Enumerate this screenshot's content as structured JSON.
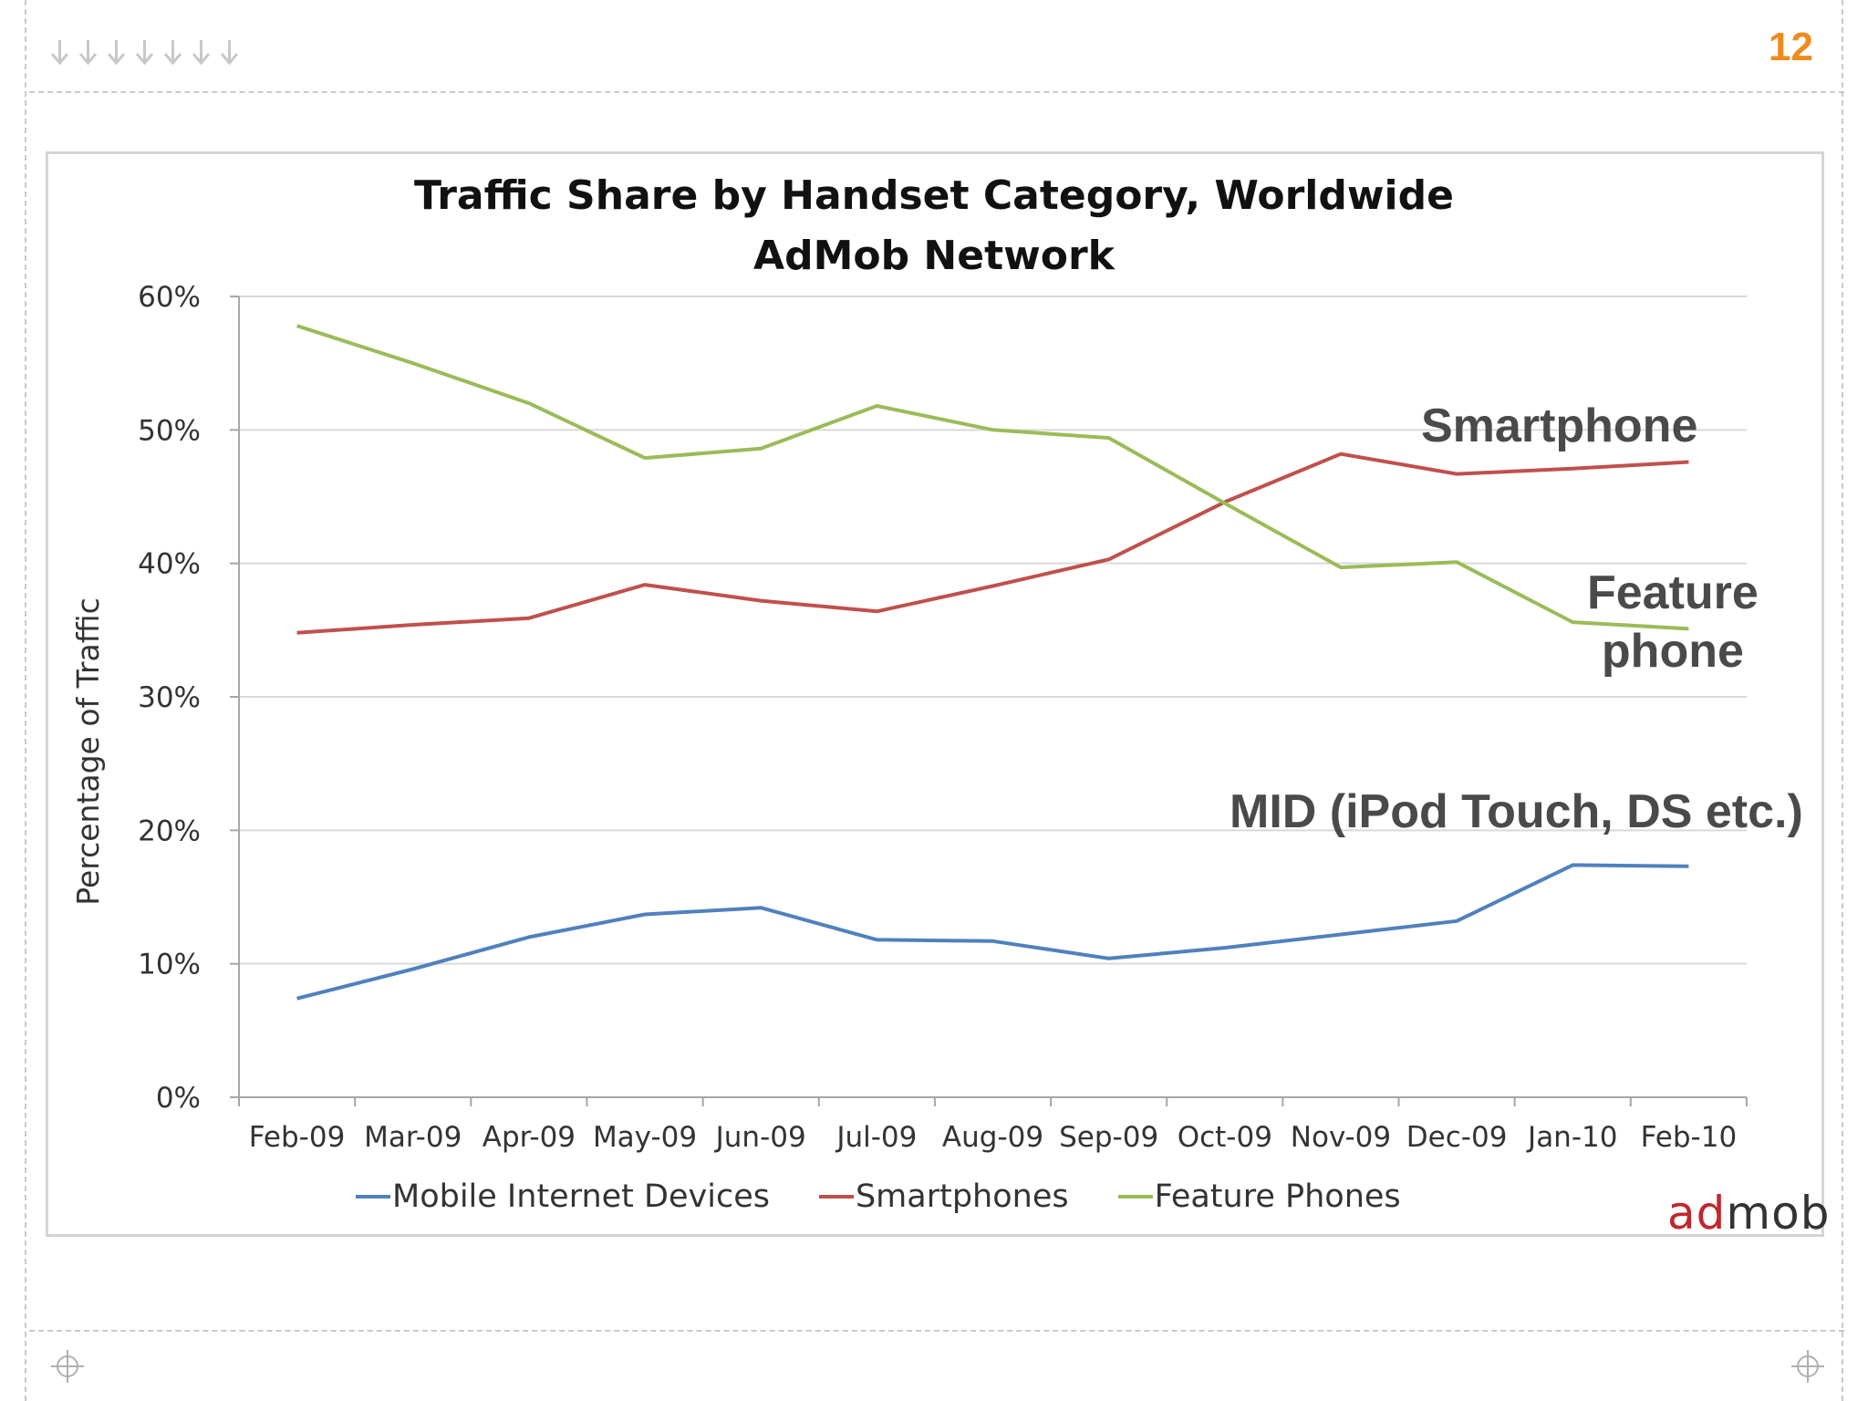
{
  "slide": {
    "page_number": "12",
    "nav_arrow_count": 7
  },
  "chart_data": {
    "type": "line",
    "title": "Traffic Share by Handset Category, Worldwide",
    "subtitle": "AdMob Network",
    "xlabel": "",
    "ylabel": "Percentage of Traffic",
    "ylim": [
      0,
      60
    ],
    "ytick_values": [
      0,
      10,
      20,
      30,
      40,
      50,
      60
    ],
    "ytick_labels": [
      "0%",
      "10%",
      "20%",
      "30%",
      "40%",
      "50%",
      "60%"
    ],
    "grid": true,
    "categories": [
      "Feb-09",
      "Mar-09",
      "Apr-09",
      "May-09",
      "Jun-09",
      "Jul-09",
      "Aug-09",
      "Sep-09",
      "Oct-09",
      "Nov-09",
      "Dec-09",
      "Jan-10",
      "Feb-10"
    ],
    "series": [
      {
        "name": "Mobile Internet Devices",
        "color": "#4f81bd",
        "values": [
          7.4,
          9.6,
          12.0,
          13.7,
          14.2,
          11.8,
          11.7,
          10.4,
          11.2,
          12.2,
          13.2,
          17.4,
          17.3
        ]
      },
      {
        "name": "Smartphones",
        "color": "#c0504d",
        "values": [
          34.8,
          35.4,
          35.9,
          38.4,
          37.2,
          36.4,
          38.3,
          40.3,
          44.6,
          48.2,
          46.7,
          47.1,
          47.6
        ]
      },
      {
        "name": "Feature Phones",
        "color": "#9bbb59",
        "values": [
          57.8,
          55.0,
          52.0,
          47.9,
          48.6,
          51.8,
          50.0,
          49.4,
          44.5,
          39.7,
          40.1,
          35.6,
          35.1
        ]
      }
    ],
    "legend_position": "bottom",
    "annotations": {
      "smartphone": "Smartphone",
      "feature_line1": "Feature",
      "feature_line2": "phone",
      "mid": "MID (iPod Touch, DS etc.)"
    }
  },
  "logo": {
    "ad": "ad",
    "mob": "mob"
  },
  "colors": {
    "page_number": "#f08a1c",
    "nav_arrow": "#c8c8c8",
    "grid": "#d9d9d9",
    "axis": "#a6a6a6"
  }
}
